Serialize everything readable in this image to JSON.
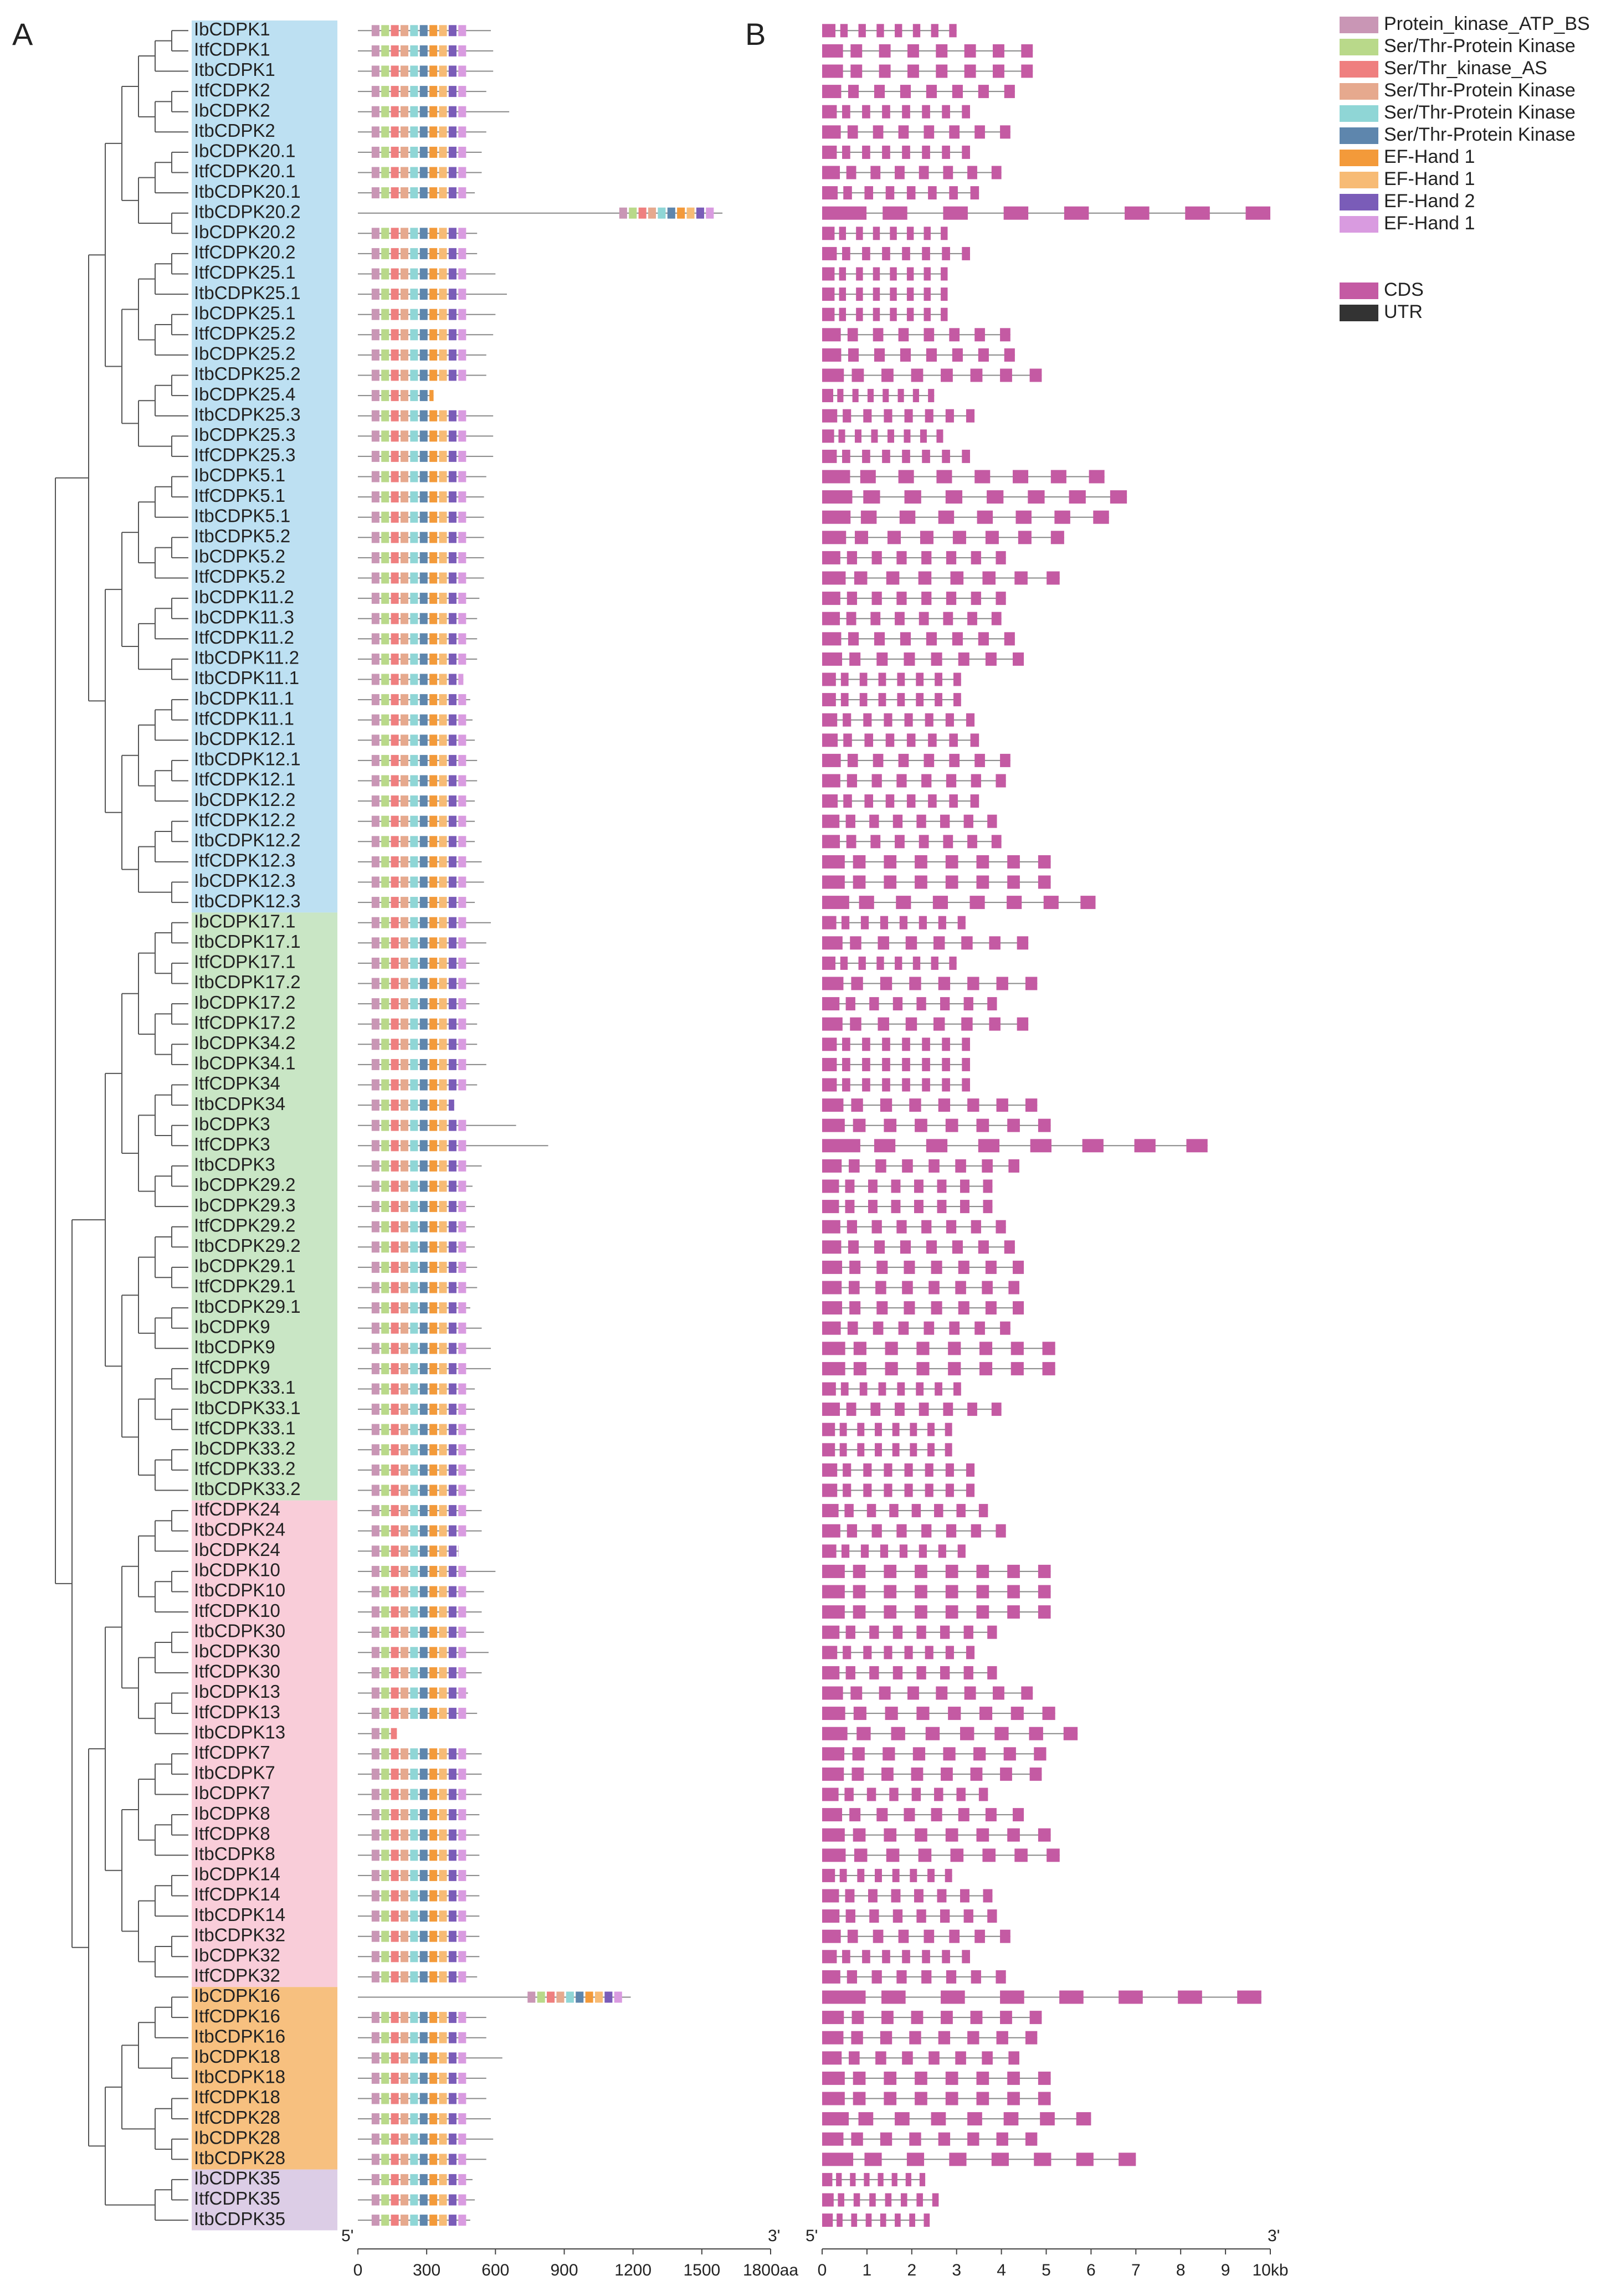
{
  "panel_labels": {
    "a": "A",
    "b": "B"
  },
  "clades": [
    {
      "color": "#bde0f2",
      "genes": [
        {
          "name": "IbCDPK1",
          "protein_length": 580,
          "gene_length": 3.0
        },
        {
          "name": "ItfCDPK1",
          "protein_length": 590,
          "gene_length": 4.7
        },
        {
          "name": "ItbCDPK1",
          "protein_length": 590,
          "gene_length": 4.7
        },
        {
          "name": "ItfCDPK2",
          "protein_length": 560,
          "gene_length": 4.3
        },
        {
          "name": "IbCDPK2",
          "protein_length": 660,
          "gene_length": 3.3
        },
        {
          "name": "ItbCDPK2",
          "protein_length": 560,
          "gene_length": 4.2
        },
        {
          "name": "IbCDPK20.1",
          "protein_length": 540,
          "gene_length": 3.3
        },
        {
          "name": "ItfCDPK20.1",
          "protein_length": 540,
          "gene_length": 4.0
        },
        {
          "name": "ItbCDPK20.1",
          "protein_length": 510,
          "gene_length": 3.5
        },
        {
          "name": "ItbCDPK20.2",
          "protein_length": 1590,
          "gene_length": 10.0
        },
        {
          "name": "IbCDPK20.2",
          "protein_length": 520,
          "gene_length": 2.8
        },
        {
          "name": "ItfCDPK20.2",
          "protein_length": 520,
          "gene_length": 3.3
        },
        {
          "name": "ItfCDPK25.1",
          "protein_length": 600,
          "gene_length": 2.8
        },
        {
          "name": "ItbCDPK25.1",
          "protein_length": 650,
          "gene_length": 2.8
        },
        {
          "name": "IbCDPK25.1",
          "protein_length": 600,
          "gene_length": 2.8
        },
        {
          "name": "ItfCDPK25.2",
          "protein_length": 590,
          "gene_length": 4.2
        },
        {
          "name": "IbCDPK25.2",
          "protein_length": 560,
          "gene_length": 4.3
        },
        {
          "name": "ItbCDPK25.2",
          "protein_length": 560,
          "gene_length": 4.9
        },
        {
          "name": "IbCDPK25.4",
          "protein_length": 330,
          "gene_length": 2.5
        },
        {
          "name": "ItbCDPK25.3",
          "protein_length": 590,
          "gene_length": 3.4
        },
        {
          "name": "IbCDPK25.3",
          "protein_length": 590,
          "gene_length": 2.7
        },
        {
          "name": "ItfCDPK25.3",
          "protein_length": 590,
          "gene_length": 3.3
        },
        {
          "name": "IbCDPK5.1",
          "protein_length": 560,
          "gene_length": 6.3
        },
        {
          "name": "ItfCDPK5.1",
          "protein_length": 550,
          "gene_length": 6.8
        },
        {
          "name": "ItbCDPK5.1",
          "protein_length": 550,
          "gene_length": 6.4
        },
        {
          "name": "ItbCDPK5.2",
          "protein_length": 550,
          "gene_length": 5.4
        },
        {
          "name": "IbCDPK5.2",
          "protein_length": 550,
          "gene_length": 4.1
        },
        {
          "name": "ItfCDPK5.2",
          "protein_length": 550,
          "gene_length": 5.3
        },
        {
          "name": "IbCDPK11.2",
          "protein_length": 530,
          "gene_length": 4.1
        },
        {
          "name": "IbCDPK11.3",
          "protein_length": 520,
          "gene_length": 4.0
        },
        {
          "name": "ItfCDPK11.2",
          "protein_length": 520,
          "gene_length": 4.3
        },
        {
          "name": "ItbCDPK11.2",
          "protein_length": 520,
          "gene_length": 4.5
        },
        {
          "name": "ItbCDPK11.1",
          "protein_length": 460,
          "gene_length": 3.1
        },
        {
          "name": "IbCDPK11.1",
          "protein_length": 490,
          "gene_length": 3.1
        },
        {
          "name": "ItfCDPK11.1",
          "protein_length": 500,
          "gene_length": 3.4
        },
        {
          "name": "IbCDPK12.1",
          "protein_length": 510,
          "gene_length": 3.5
        },
        {
          "name": "ItbCDPK12.1",
          "protein_length": 520,
          "gene_length": 4.2
        },
        {
          "name": "ItfCDPK12.1",
          "protein_length": 520,
          "gene_length": 4.1
        },
        {
          "name": "IbCDPK12.2",
          "protein_length": 510,
          "gene_length": 3.5
        },
        {
          "name": "ItfCDPK12.2",
          "protein_length": 510,
          "gene_length": 3.9
        },
        {
          "name": "ItbCDPK12.2",
          "protein_length": 510,
          "gene_length": 4.0
        },
        {
          "name": "ItfCDPK12.3",
          "protein_length": 540,
          "gene_length": 5.1
        },
        {
          "name": "IbCDPK12.3",
          "protein_length": 550,
          "gene_length": 5.1
        },
        {
          "name": "ItbCDPK12.3",
          "protein_length": 510,
          "gene_length": 6.1
        }
      ]
    },
    {
      "color": "#c9e6c5",
      "genes": [
        {
          "name": "IbCDPK17.1",
          "protein_length": 580,
          "gene_length": 3.2
        },
        {
          "name": "ItbCDPK17.1",
          "protein_length": 560,
          "gene_length": 4.6
        },
        {
          "name": "ItfCDPK17.1",
          "protein_length": 530,
          "gene_length": 3.0
        },
        {
          "name": "ItbCDPK17.2",
          "protein_length": 530,
          "gene_length": 4.8
        },
        {
          "name": "IbCDPK17.2",
          "protein_length": 530,
          "gene_length": 3.9
        },
        {
          "name": "ItfCDPK17.2",
          "protein_length": 520,
          "gene_length": 4.6
        },
        {
          "name": "IbCDPK34.2",
          "protein_length": 520,
          "gene_length": 3.3
        },
        {
          "name": "IbCDPK34.1",
          "protein_length": 560,
          "gene_length": 3.3
        },
        {
          "name": "ItfCDPK34",
          "protein_length": 520,
          "gene_length": 3.3
        },
        {
          "name": "ItbCDPK34",
          "protein_length": 420,
          "gene_length": 4.8
        },
        {
          "name": "IbCDPK3",
          "protein_length": 690,
          "gene_length": 5.1
        },
        {
          "name": "ItfCDPK3",
          "protein_length": 830,
          "gene_length": 8.6
        },
        {
          "name": "ItbCDPK3",
          "protein_length": 540,
          "gene_length": 4.4
        },
        {
          "name": "IbCDPK29.2",
          "protein_length": 500,
          "gene_length": 3.8
        },
        {
          "name": "IbCDPK29.3",
          "protein_length": 510,
          "gene_length": 3.8
        },
        {
          "name": "ItfCDPK29.2",
          "protein_length": 510,
          "gene_length": 4.1
        },
        {
          "name": "ItbCDPK29.2",
          "protein_length": 510,
          "gene_length": 4.3
        },
        {
          "name": "IbCDPK29.1",
          "protein_length": 520,
          "gene_length": 4.5
        },
        {
          "name": "ItfCDPK29.1",
          "protein_length": 520,
          "gene_length": 4.4
        },
        {
          "name": "ItbCDPK29.1",
          "protein_length": 490,
          "gene_length": 4.5
        },
        {
          "name": "IbCDPK9",
          "protein_length": 540,
          "gene_length": 4.2
        },
        {
          "name": "ItbCDPK9",
          "protein_length": 580,
          "gene_length": 5.2
        },
        {
          "name": "ItfCDPK9",
          "protein_length": 580,
          "gene_length": 5.2
        },
        {
          "name": "IbCDPK33.1",
          "protein_length": 510,
          "gene_length": 3.1
        },
        {
          "name": "ItbCDPK33.1",
          "protein_length": 510,
          "gene_length": 4.0
        },
        {
          "name": "ItfCDPK33.1",
          "protein_length": 510,
          "gene_length": 2.9
        },
        {
          "name": "IbCDPK33.2",
          "protein_length": 510,
          "gene_length": 2.9
        },
        {
          "name": "ItfCDPK33.2",
          "protein_length": 510,
          "gene_length": 3.4
        },
        {
          "name": "ItbCDPK33.2",
          "protein_length": 510,
          "gene_length": 3.4
        }
      ]
    },
    {
      "color": "#f9cdd9",
      "genes": [
        {
          "name": "ItfCDPK24",
          "protein_length": 540,
          "gene_length": 3.7
        },
        {
          "name": "ItbCDPK24",
          "protein_length": 540,
          "gene_length": 4.1
        },
        {
          "name": "IbCDPK24",
          "protein_length": 440,
          "gene_length": 3.2
        },
        {
          "name": "IbCDPK10",
          "protein_length": 600,
          "gene_length": 5.1
        },
        {
          "name": "ItbCDPK10",
          "protein_length": 550,
          "gene_length": 5.1
        },
        {
          "name": "ItfCDPK10",
          "protein_length": 540,
          "gene_length": 5.1
        },
        {
          "name": "ItbCDPK30",
          "protein_length": 550,
          "gene_length": 3.9
        },
        {
          "name": "IbCDPK30",
          "protein_length": 570,
          "gene_length": 3.4
        },
        {
          "name": "ItfCDPK30",
          "protein_length": 540,
          "gene_length": 3.9
        },
        {
          "name": "IbCDPK13",
          "protein_length": 480,
          "gene_length": 4.7
        },
        {
          "name": "ItfCDPK13",
          "protein_length": 520,
          "gene_length": 5.2
        },
        {
          "name": "ItbCDPK13",
          "protein_length": 170,
          "gene_length": 5.7
        },
        {
          "name": "ItfCDPK7",
          "protein_length": 540,
          "gene_length": 5.0
        },
        {
          "name": "ItbCDPK7",
          "protein_length": 540,
          "gene_length": 4.9
        },
        {
          "name": "IbCDPK7",
          "protein_length": 540,
          "gene_length": 3.7
        },
        {
          "name": "IbCDPK8",
          "protein_length": 530,
          "gene_length": 4.5
        },
        {
          "name": "ItfCDPK8",
          "protein_length": 530,
          "gene_length": 5.1
        },
        {
          "name": "ItbCDPK8",
          "protein_length": 530,
          "gene_length": 5.3
        },
        {
          "name": "IbCDPK14",
          "protein_length": 530,
          "gene_length": 2.9
        },
        {
          "name": "ItfCDPK14",
          "protein_length": 530,
          "gene_length": 3.8
        },
        {
          "name": "ItbCDPK14",
          "protein_length": 530,
          "gene_length": 3.9
        },
        {
          "name": "ItbCDPK32",
          "protein_length": 530,
          "gene_length": 4.2
        },
        {
          "name": "IbCDPK32",
          "protein_length": 530,
          "gene_length": 3.3
        },
        {
          "name": "ItfCDPK32",
          "protein_length": 520,
          "gene_length": 4.1
        }
      ]
    },
    {
      "color": "#f7c07f",
      "genes": [
        {
          "name": "IbCDPK16",
          "protein_length": 1190,
          "gene_length": 9.8
        },
        {
          "name": "ItfCDPK16",
          "protein_length": 560,
          "gene_length": 4.9
        },
        {
          "name": "ItbCDPK16",
          "protein_length": 560,
          "gene_length": 4.8
        },
        {
          "name": "IbCDPK18",
          "protein_length": 630,
          "gene_length": 4.4
        },
        {
          "name": "ItbCDPK18",
          "protein_length": 560,
          "gene_length": 5.1
        },
        {
          "name": "ItfCDPK18",
          "protein_length": 560,
          "gene_length": 5.1
        },
        {
          "name": "ItfCDPK28",
          "protein_length": 580,
          "gene_length": 6.0
        },
        {
          "name": "IbCDPK28",
          "protein_length": 590,
          "gene_length": 4.8
        },
        {
          "name": "ItbCDPK28",
          "protein_length": 560,
          "gene_length": 7.0
        }
      ]
    },
    {
      "color": "#dccde6",
      "genes": [
        {
          "name": "IbCDPK35",
          "protein_length": 500,
          "gene_length": 2.3
        },
        {
          "name": "ItfCDPK35",
          "protein_length": 510,
          "gene_length": 2.6
        },
        {
          "name": "ItbCDPK35",
          "protein_length": 490,
          "gene_length": 2.4
        }
      ]
    }
  ],
  "protein_axis": {
    "start": "5'",
    "end": "3'",
    "xlim": [
      0,
      1800
    ],
    "ticks": [
      0,
      300,
      600,
      900,
      1200,
      1500,
      {
        "value": 1800,
        "label": "1800aa"
      }
    ]
  },
  "gene_axis": {
    "start": "5'",
    "end": "3'",
    "xlim": [
      0,
      10
    ],
    "ticks": [
      0,
      1,
      2,
      3,
      4,
      5,
      6,
      7,
      8,
      9,
      {
        "value": 10,
        "label": "10kb"
      }
    ]
  },
  "legend": {
    "domains": [
      {
        "name": "Protein_kinase_ATP_BS",
        "color": "#c996b5"
      },
      {
        "name": "Ser/Thr-Protein Kinase",
        "color": "#b9d98a"
      },
      {
        "name": "Ser/Thr_kinase_AS",
        "color": "#ef7f7f"
      },
      {
        "name": "Ser/Thr-Protein Kinase",
        "color": "#e6a98e"
      },
      {
        "name": "Ser/Thr-Protein Kinase",
        "color": "#8fd6d6"
      },
      {
        "name": "Ser/Thr-Protein Kinase",
        "color": "#5e86ad"
      },
      {
        "name": "EF-Hand 1",
        "color": "#f39a3a"
      },
      {
        "name": "EF-Hand 1",
        "color": "#f7bb75"
      },
      {
        "name": "EF-Hand 2",
        "color": "#7a5cb8"
      },
      {
        "name": "EF-Hand 1",
        "color": "#d99be0"
      }
    ],
    "structure": [
      {
        "name": "CDS",
        "color": "#c45aa3"
      },
      {
        "name": "UTR",
        "color": "#333333"
      }
    ]
  }
}
